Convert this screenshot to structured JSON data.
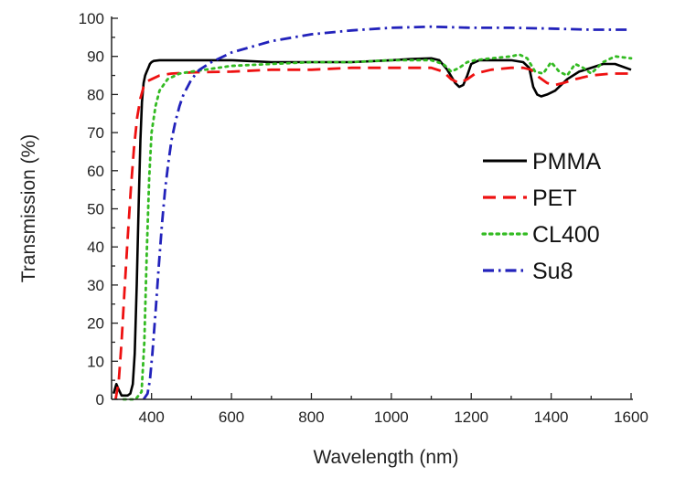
{
  "chart_data": {
    "type": "line",
    "title": "",
    "xlabel": "Wavelength (nm)",
    "ylabel": "Transmission (%)",
    "xlim": [
      300,
      1600
    ],
    "ylim": [
      0,
      100
    ],
    "x_ticks": [
      400,
      600,
      800,
      1000,
      1200,
      1400,
      1600
    ],
    "y_ticks": [
      0,
      10,
      20,
      30,
      40,
      50,
      60,
      70,
      80,
      90,
      100
    ],
    "grid": false,
    "legend_position": "right",
    "series": [
      {
        "name": "PMMA",
        "color": "#000000",
        "dash": "solid",
        "x": [
          305,
          312,
          318,
          325,
          333,
          340,
          347,
          353,
          358,
          363,
          368,
          372,
          376,
          380,
          384,
          388,
          392,
          396,
          400,
          405,
          420,
          500,
          600,
          700,
          800,
          900,
          1000,
          1050,
          1100,
          1120,
          1140,
          1160,
          1170,
          1180,
          1190,
          1200,
          1220,
          1260,
          1300,
          1330,
          1345,
          1355,
          1365,
          1375,
          1390,
          1410,
          1440,
          1470,
          1500,
          1530,
          1560,
          1600
        ],
        "y": [
          1.5,
          4.0,
          2.5,
          1.0,
          1.0,
          1.0,
          1.5,
          4.0,
          12,
          30,
          52,
          68,
          78,
          83,
          85,
          86,
          87,
          88,
          88.5,
          88.8,
          89,
          89,
          89,
          88.5,
          88.5,
          88.5,
          89,
          89.3,
          89.5,
          89,
          86.5,
          83,
          82,
          82.5,
          85,
          88,
          89,
          89,
          89,
          88.5,
          87,
          82,
          80,
          79.5,
          80,
          81,
          84,
          86,
          87,
          88,
          88,
          86.5
        ]
      },
      {
        "name": "PET",
        "color": "#ee1111",
        "dash": "dash",
        "x": [
          310,
          318,
          325,
          332,
          340,
          348,
          356,
          364,
          372,
          380,
          390,
          400,
          420,
          450,
          500,
          600,
          700,
          800,
          900,
          1000,
          1100,
          1130,
          1150,
          1170,
          1190,
          1210,
          1250,
          1300,
          1330,
          1350,
          1370,
          1390,
          1410,
          1430,
          1460,
          1500,
          1550,
          1600
        ],
        "y": [
          0,
          5,
          15,
          28,
          42,
          55,
          66,
          74,
          79,
          82,
          83.5,
          84,
          85,
          85.5,
          85.8,
          86,
          86.5,
          86.5,
          87,
          87,
          87,
          86,
          84,
          83,
          84,
          85.5,
          86.5,
          87,
          87,
          86.5,
          84.5,
          83,
          82.5,
          83,
          84,
          85,
          85.5,
          85.5
        ]
      },
      {
        "name": "CL400",
        "color": "#33bb22",
        "dash": "dot",
        "x": [
          330,
          360,
          375,
          382,
          388,
          394,
          400,
          410,
          420,
          440,
          470,
          500,
          600,
          700,
          800,
          900,
          1000,
          1050,
          1100,
          1130,
          1150,
          1170,
          1190,
          1210,
          1250,
          1300,
          1320,
          1340,
          1360,
          1380,
          1400,
          1420,
          1440,
          1460,
          1480,
          1500,
          1530,
          1560,
          1600
        ],
        "y": [
          0,
          0,
          2,
          15,
          38,
          58,
          70,
          77,
          81,
          84,
          85.5,
          86,
          87.5,
          88,
          88.5,
          88.5,
          89,
          89,
          89,
          88,
          86,
          87,
          88.5,
          89,
          89.5,
          90,
          90.5,
          89.5,
          86,
          85.5,
          88.5,
          86,
          85,
          88,
          87,
          85.5,
          88.5,
          90,
          89.5
        ]
      },
      {
        "name": "Su8",
        "color": "#2222bb",
        "dash": "dashdot",
        "x": [
          380,
          390,
          396,
          402,
          410,
          418,
          426,
          434,
          442,
          450,
          460,
          470,
          480,
          490,
          500,
          520,
          550,
          600,
          700,
          800,
          900,
          1000,
          1100,
          1200,
          1300,
          1400,
          1500,
          1600
        ],
        "y": [
          0,
          1.5,
          5,
          12,
          23,
          35,
          46,
          55,
          62,
          68,
          73,
          77,
          80,
          82,
          84,
          86.5,
          88.5,
          91,
          94,
          95.8,
          96.8,
          97.5,
          97.8,
          97.5,
          97.5,
          97.3,
          97,
          97
        ]
      }
    ]
  }
}
